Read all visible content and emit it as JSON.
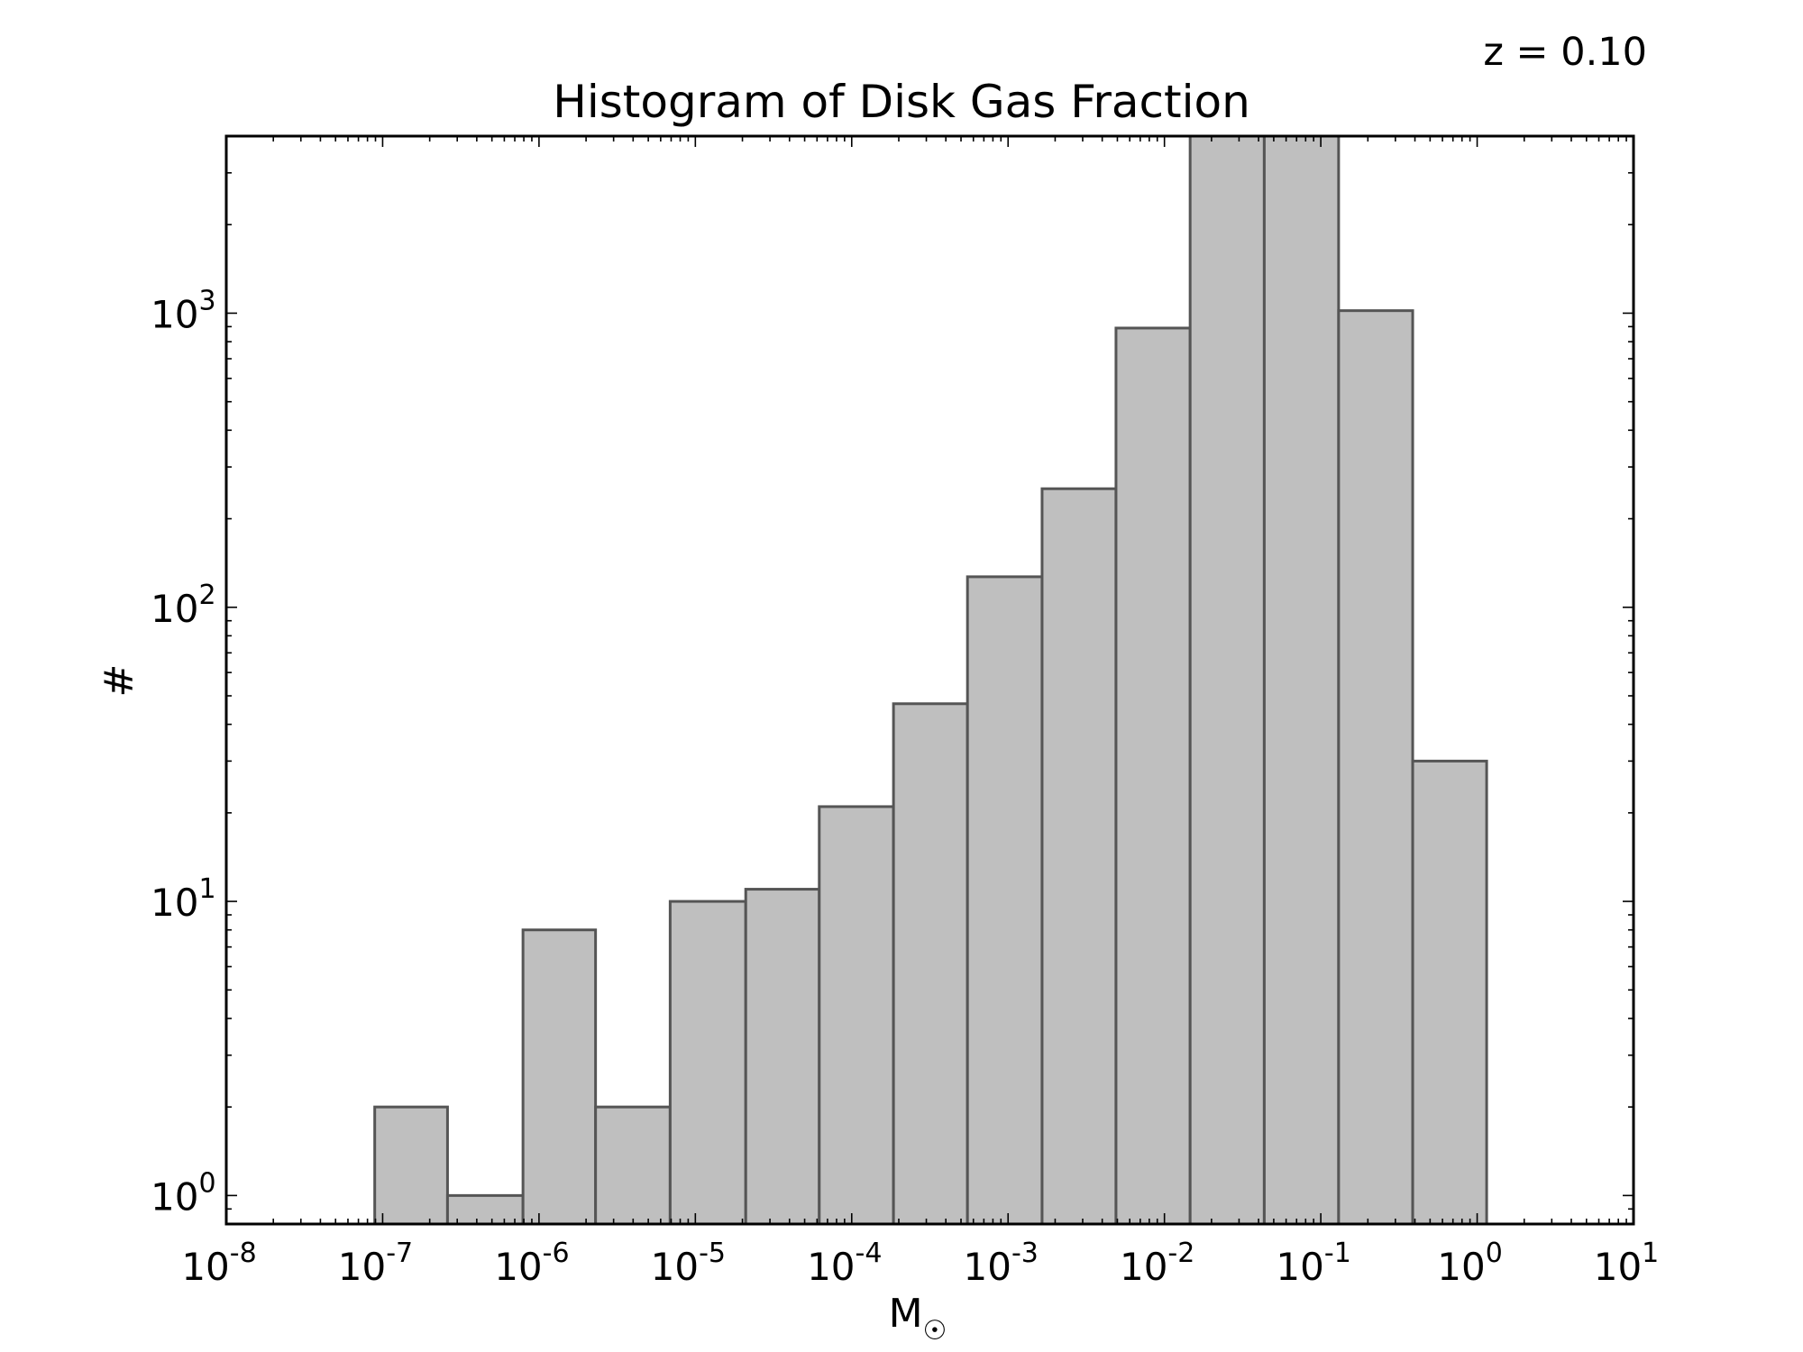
{
  "annotation": "z = 0.10",
  "chart_data": {
    "type": "bar",
    "title": "Histogram of Disk Gas Fraction",
    "xlabel": "M",
    "xlabel_subscript": "☉",
    "ylabel": "#",
    "xscale": "log",
    "yscale": "log",
    "xlim": [
      1e-08,
      10
    ],
    "ylim": [
      0.8,
      4000
    ],
    "x_ticks": [
      {
        "base": "10",
        "exp": "-8"
      },
      {
        "base": "10",
        "exp": "-7"
      },
      {
        "base": "10",
        "exp": "-6"
      },
      {
        "base": "10",
        "exp": "-5"
      },
      {
        "base": "10",
        "exp": "-4"
      },
      {
        "base": "10",
        "exp": "-3"
      },
      {
        "base": "10",
        "exp": "-2"
      },
      {
        "base": "10",
        "exp": "-1"
      },
      {
        "base": "10",
        "exp": "0"
      },
      {
        "base": "10",
        "exp": "1"
      }
    ],
    "y_ticks": [
      {
        "base": "10",
        "exp": "0"
      },
      {
        "base": "10",
        "exp": "1"
      },
      {
        "base": "10",
        "exp": "2"
      },
      {
        "base": "10",
        "exp": "3"
      }
    ],
    "bin_edges": [
      8.9e-08,
      2.6e-07,
      7.9e-07,
      2.3e-06,
      6.9e-06,
      2.1e-05,
      6.2e-05,
      0.000185,
      0.00055,
      0.00165,
      0.0049,
      0.0146,
      0.0435,
      0.13,
      0.387,
      1.15
    ],
    "values": [
      2,
      1,
      8,
      2,
      10,
      11,
      21,
      47,
      127,
      253,
      890,
      4500,
      4500,
      1020,
      30
    ],
    "bar_color": "#bfbfbf",
    "bar_edge_color": "#555555",
    "grid": false
  }
}
